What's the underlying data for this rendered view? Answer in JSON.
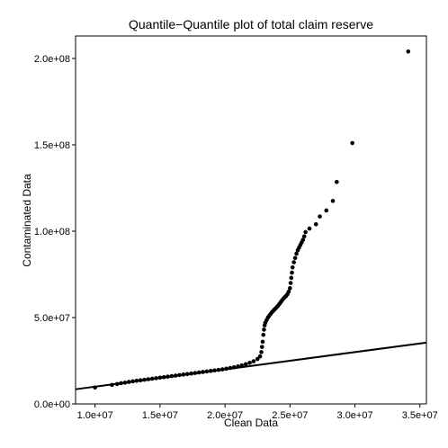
{
  "chart_data": {
    "type": "scatter",
    "title": "Quantile−Quantile plot of total claim reserve",
    "xlabel": "Clean Data",
    "ylabel": "Contaminated Data",
    "xlim": [
      8500000,
      35500000
    ],
    "ylim": [
      0,
      213000000
    ],
    "x_ticks": [
      10000000,
      15000000,
      20000000,
      25000000,
      30000000,
      35000000
    ],
    "x_tick_labels": [
      "1.0e+07",
      "1.5e+07",
      "2.0e+07",
      "2.5e+07",
      "3.0e+07",
      "3.5e+07"
    ],
    "y_ticks": [
      0,
      50000000,
      100000000,
      150000000,
      200000000
    ],
    "y_tick_labels": [
      "0.0e+00",
      "5.0e+07",
      "1.0e+08",
      "1.5e+08",
      "2.0e+08"
    ],
    "grid": false,
    "series": [
      {
        "kind": "points",
        "x": [
          10000000,
          11300000,
          11700000,
          12000000,
          12300000,
          12600000,
          12900000,
          13200000,
          13500000,
          13800000,
          14100000,
          14400000,
          14700000,
          15000000,
          15300000,
          15600000,
          15900000,
          16200000,
          16500000,
          16800000,
          17100000,
          17400000,
          17700000,
          18000000,
          18300000,
          18600000,
          18900000,
          19200000,
          19500000,
          19800000,
          20100000,
          20400000,
          20700000,
          21000000,
          21300000,
          21600000,
          21900000,
          22200000,
          22500000,
          22700000,
          22800000,
          22850000,
          22900000,
          22950000,
          23000000,
          23050000,
          23100000,
          23200000,
          23300000,
          23400000,
          23500000,
          23600000,
          23700000,
          23800000,
          23900000,
          24000000,
          24100000,
          24200000,
          24300000,
          24400000,
          24500000,
          24600000,
          24700000,
          24800000,
          24900000,
          25000000,
          25050000,
          25100000,
          25150000,
          25200000,
          25300000,
          25400000,
          25500000,
          25600000,
          25700000,
          25800000,
          25900000,
          26000000,
          26100000,
          26200000,
          26500000,
          27000000,
          27300000,
          27800000,
          28300000,
          28600000,
          29800000,
          34100000
        ],
        "y": [
          9500000,
          11000000,
          11500000,
          12000000,
          12300000,
          12700000,
          13100000,
          13400000,
          13700000,
          14000000,
          14300000,
          14600000,
          14900000,
          15200000,
          15500000,
          15800000,
          16100000,
          16400000,
          16700000,
          17000000,
          17300000,
          17600000,
          17900000,
          18200000,
          18500000,
          18800000,
          19100000,
          19400000,
          19700000,
          20000000,
          20400000,
          20800000,
          21200000,
          21700000,
          22300000,
          23000000,
          23800000,
          24700000,
          26000000,
          27500000,
          30000000,
          33000000,
          36000000,
          40000000,
          43000000,
          45500000,
          47000000,
          48500000,
          50000000,
          51000000,
          52000000,
          53000000,
          53800000,
          54600000,
          55400000,
          56200000,
          57000000,
          58000000,
          59000000,
          60000000,
          61000000,
          61800000,
          62500000,
          63500000,
          65000000,
          67000000,
          70000000,
          73000000,
          76000000,
          79000000,
          82000000,
          84500000,
          87000000,
          89000000,
          90500000,
          92000000,
          93500000,
          95000000,
          97000000,
          99500000,
          101500000,
          104000000,
          108500000,
          112000000,
          117500000,
          128500000,
          151000000,
          204000000
        ]
      },
      {
        "kind": "line",
        "x": [
          8500000,
          35500000
        ],
        "y": [
          8500000,
          35500000
        ]
      }
    ]
  }
}
